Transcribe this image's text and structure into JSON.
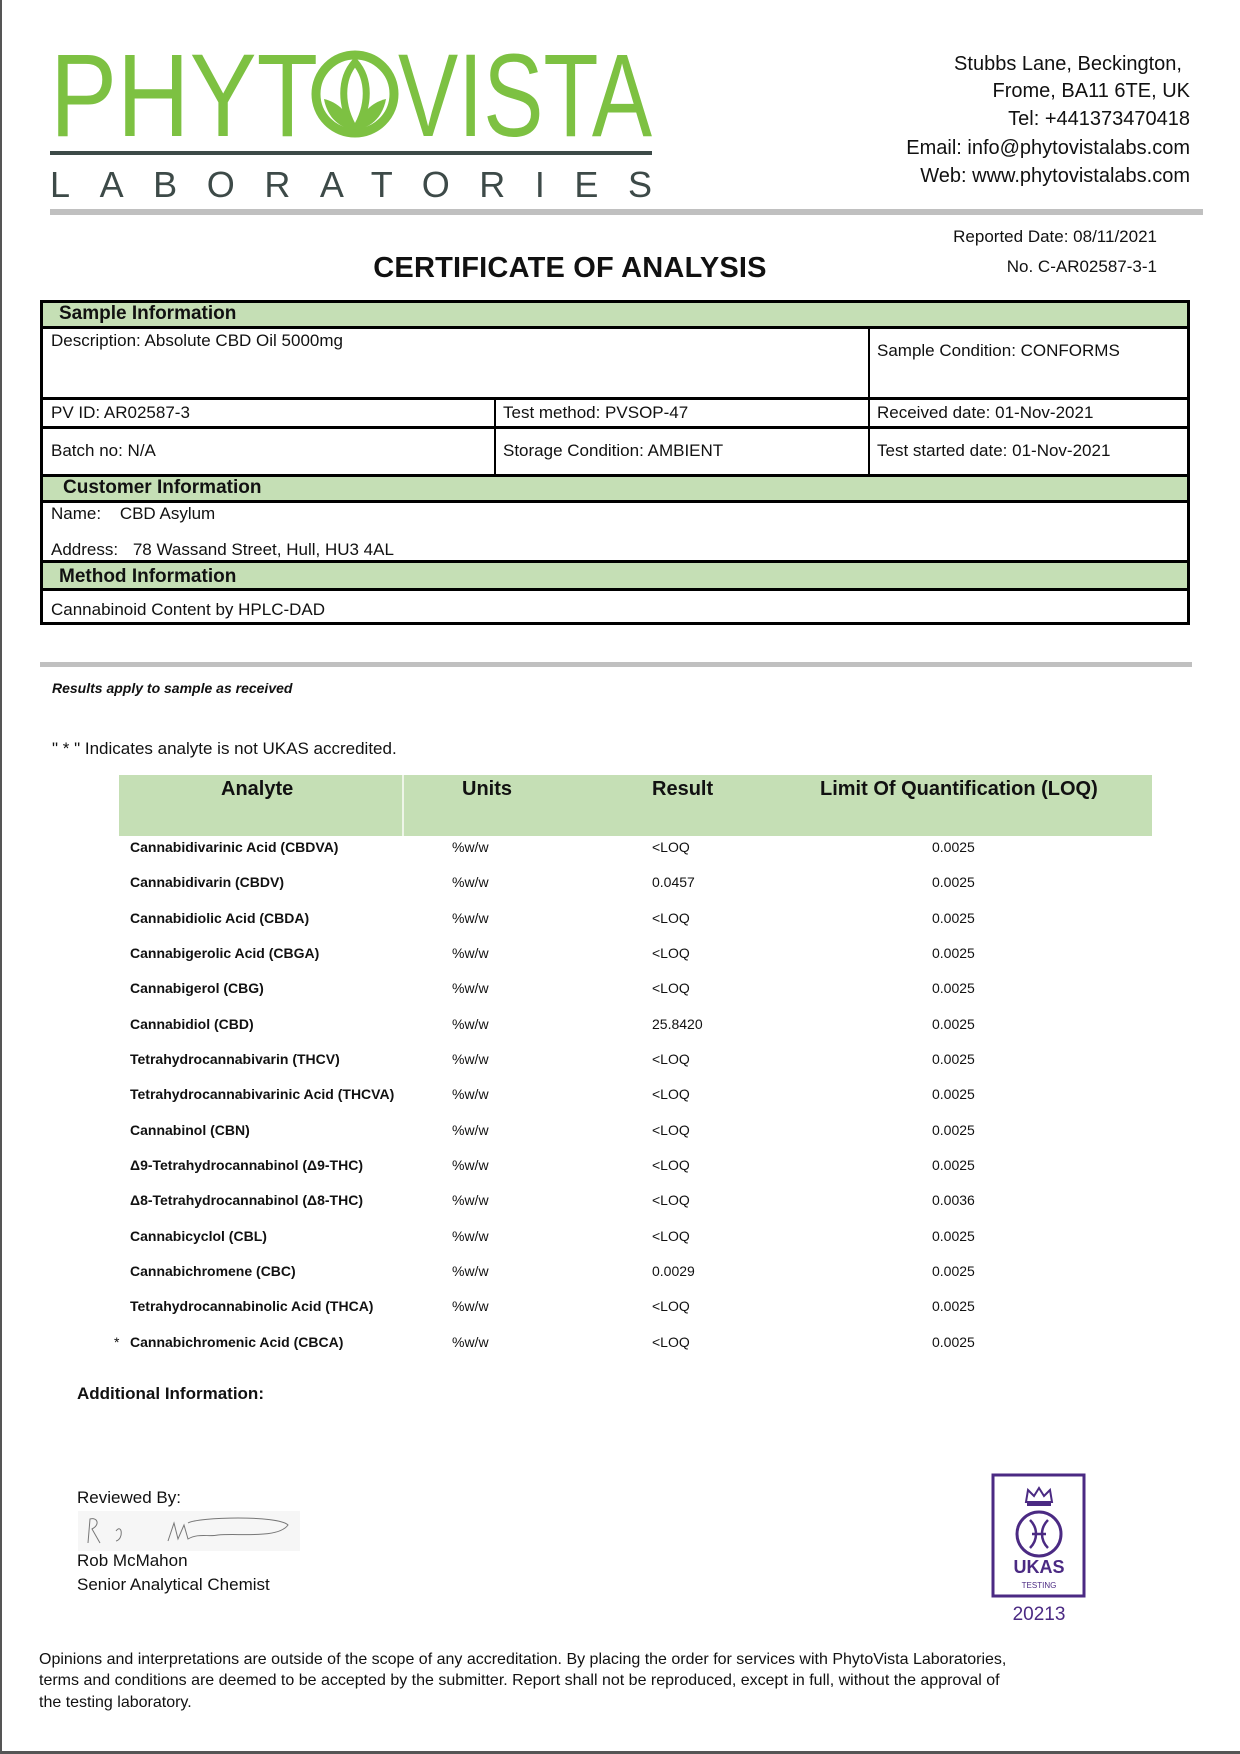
{
  "brand": {
    "logo_word": "PHYTOVISTA",
    "logo_sub": "LABORATORIES",
    "green": "#7dc142",
    "band_green": "#c5dfb5"
  },
  "contact": {
    "line1": "Stubbs Lane, Beckington,",
    "line2": "Frome, BA11 6TE, UK",
    "tel": "Tel: +441373470418",
    "email": "Email: info@phytovistalabs.com",
    "web": "Web: www.phytovistalabs.com"
  },
  "report": {
    "title": "CERTIFICATE OF ANALYSIS",
    "reported_date": "Reported Date: 08/11/2021",
    "number": "No. C-AR02587-3-1"
  },
  "sample": {
    "heading": "Sample Information",
    "description": "Description: Absolute CBD Oil 5000mg",
    "condition": "Sample Condition: CONFORMS",
    "pv_id": "PV ID: AR02587-3",
    "test_method": "Test method: PVSOP-47",
    "received": "Received date: 01-Nov-2021",
    "batch": "Batch no: N/A",
    "storage": "Storage Condition: AMBIENT",
    "test_started": "Test started date: 01-Nov-2021"
  },
  "customer": {
    "heading": "Customer Information",
    "name_label": "Name:",
    "name": "CBD Asylum",
    "address_label": "Address:",
    "address": "78 Wassand Street, Hull, HU3 4AL"
  },
  "method": {
    "heading": "Method Information",
    "text": "Cannabinoid Content by HPLC-DAD"
  },
  "notes": {
    "results_apply": "Results apply to sample as received",
    "ukas_note": "\" * \" Indicates analyte is not UKAS accredited."
  },
  "results": {
    "headers": [
      "Analyte",
      "Units",
      "Result",
      "Limit Of Quantification (LOQ)"
    ],
    "rows": [
      {
        "star": "",
        "analyte": "Cannabidivarinic Acid (CBDVA)",
        "units": "%w/w",
        "result": "<LOQ",
        "loq": "0.0025"
      },
      {
        "star": "",
        "analyte": "Cannabidivarin (CBDV)",
        "units": "%w/w",
        "result": "0.0457",
        "loq": "0.0025"
      },
      {
        "star": "",
        "analyte": "Cannabidiolic Acid (CBDA)",
        "units": "%w/w",
        "result": "<LOQ",
        "loq": "0.0025"
      },
      {
        "star": "",
        "analyte": "Cannabigerolic Acid (CBGA)",
        "units": "%w/w",
        "result": "<LOQ",
        "loq": "0.0025"
      },
      {
        "star": "",
        "analyte": "Cannabigerol (CBG)",
        "units": "%w/w",
        "result": "<LOQ",
        "loq": "0.0025"
      },
      {
        "star": "",
        "analyte": "Cannabidiol (CBD)",
        "units": "%w/w",
        "result": "25.8420",
        "loq": "0.0025"
      },
      {
        "star": "",
        "analyte": "Tetrahydrocannabivarin (THCV)",
        "units": "%w/w",
        "result": "<LOQ",
        "loq": "0.0025"
      },
      {
        "star": "",
        "analyte": "Tetrahydrocannabivarinic Acid (THCVA)",
        "units": "%w/w",
        "result": "<LOQ",
        "loq": "0.0025"
      },
      {
        "star": "",
        "analyte": "Cannabinol (CBN)",
        "units": "%w/w",
        "result": "<LOQ",
        "loq": "0.0025"
      },
      {
        "star": "",
        "analyte": "Δ9-Tetrahydrocannabinol (Δ9-THC)",
        "units": "%w/w",
        "result": "<LOQ",
        "loq": "0.0025"
      },
      {
        "star": "",
        "analyte": "Δ8-Tetrahydrocannabinol (Δ8-THC)",
        "units": "%w/w",
        "result": "<LOQ",
        "loq": "0.0036"
      },
      {
        "star": "",
        "analyte": "Cannabicyclol (CBL)",
        "units": "%w/w",
        "result": "<LOQ",
        "loq": "0.0025"
      },
      {
        "star": "",
        "analyte": "Cannabichromene (CBC)",
        "units": "%w/w",
        "result": "0.0029",
        "loq": "0.0025"
      },
      {
        "star": "",
        "analyte": "Tetrahydrocannabinolic Acid (THCA)",
        "units": "%w/w",
        "result": "<LOQ",
        "loq": "0.0025"
      },
      {
        "star": "*",
        "analyte": "Cannabichromenic Acid (CBCA)",
        "units": "%w/w",
        "result": "<LOQ",
        "loq": "0.0025"
      }
    ]
  },
  "additional": {
    "label": "Additional Information:"
  },
  "review": {
    "label": "Reviewed By:",
    "signature": "R. J. Mm",
    "name": "Rob McMahon",
    "title": "Senior Analytical Chemist"
  },
  "ukas": {
    "word": "UKAS",
    "sub": "TESTING",
    "number": "20213",
    "color": "#4b2a83"
  },
  "footer": {
    "line1": "Opinions and interpretations are outside of the scope of any accreditation. By placing the order for services with PhytoVista Laboratories,",
    "line2": "terms and conditions are deemed to be accepted by the submitter. Report shall not be reproduced, except in full, without the approval of",
    "line3": "the testing laboratory."
  }
}
